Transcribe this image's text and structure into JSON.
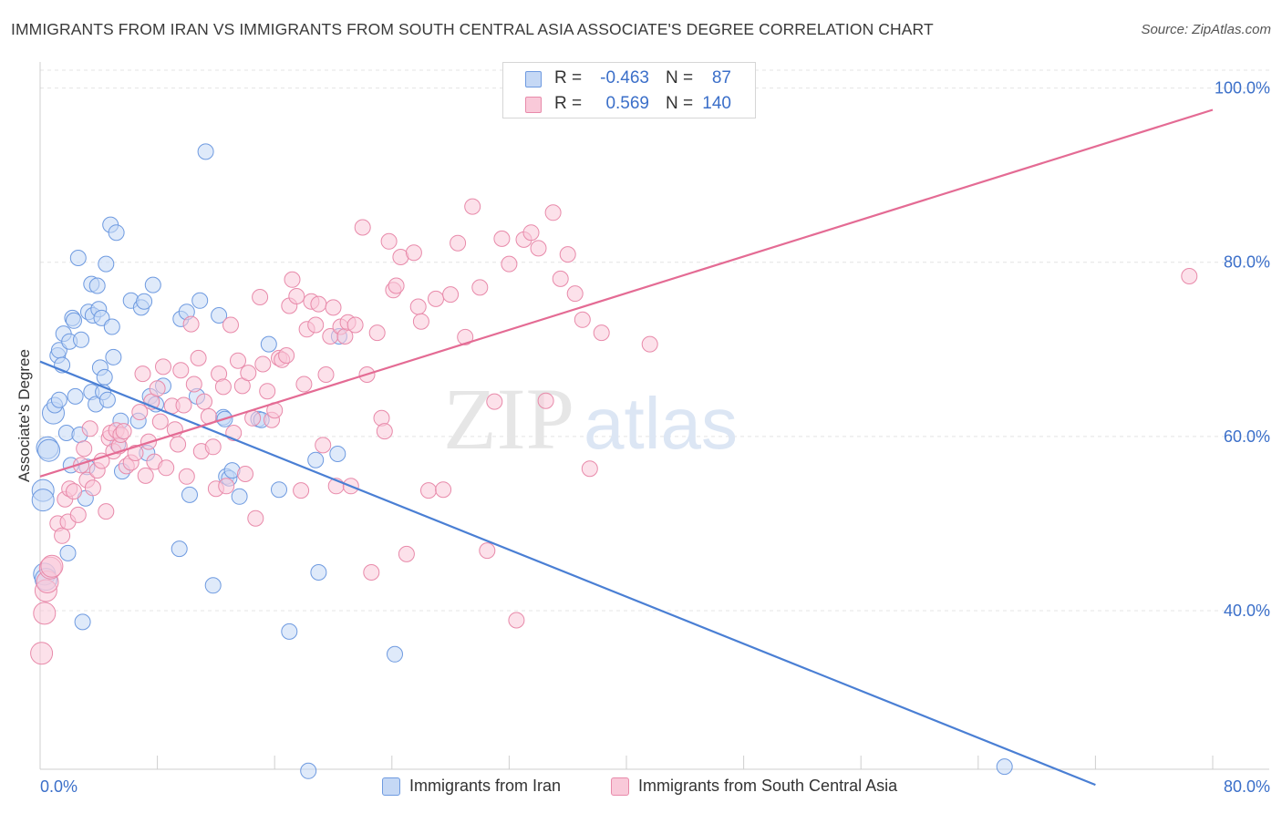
{
  "title": "IMMIGRANTS FROM IRAN VS IMMIGRANTS FROM SOUTH CENTRAL ASIA ASSOCIATE'S DEGREE CORRELATION CHART",
  "source": "Source: ZipAtlas.com",
  "watermark": {
    "zip": "ZIP",
    "atlas": "atlas"
  },
  "stats": {
    "r_label": "R =",
    "n_label": "N =",
    "rows": [
      {
        "r": "-0.463",
        "n": "87",
        "color": "#4a7fd4"
      },
      {
        "r": "0.569",
        "n": "140",
        "color": "#e46b94"
      }
    ]
  },
  "legend": [
    {
      "label": "Immigrants from Iran",
      "fill": "#c5d8f5",
      "stroke": "#6e9ae0"
    },
    {
      "label": "Immigrants from South Central Asia",
      "fill": "#f9c9d9",
      "stroke": "#e88aaa"
    }
  ],
  "chart_data": {
    "type": "scatter",
    "title": "IMMIGRANTS FROM IRAN VS IMMIGRANTS FROM SOUTH CENTRAL ASIA ASSOCIATE'S DEGREE CORRELATION CHART",
    "xlabel": "",
    "ylabel": "Associate's Degree",
    "xlim": [
      0,
      80
    ],
    "ylim": [
      20,
      102
    ],
    "x_tick_labels": [
      "0.0%",
      "80.0%"
    ],
    "y_ticks": [
      40,
      60,
      80,
      100
    ],
    "y_tick_labels": [
      "40.0%",
      "60.0%",
      "80.0%",
      "100.0%"
    ],
    "grid": true,
    "legend_position": "bottom",
    "series": [
      {
        "name": "Immigrants from Iran",
        "color": "#4a7fd4",
        "fill": "#c5d8f5",
        "trend": {
          "x": [
            0,
            72
          ],
          "y": [
            68.6,
            20
          ]
        },
        "points": [
          [
            0.2,
            53.8
          ],
          [
            0.2,
            52.7
          ],
          [
            0.3,
            44.2
          ],
          [
            0.4,
            43.6
          ],
          [
            0.5,
            58.7
          ],
          [
            0.6,
            58.4
          ],
          [
            0.9,
            62.7
          ],
          [
            1.0,
            63.6
          ],
          [
            1.2,
            69.3
          ],
          [
            1.3,
            64.2
          ],
          [
            1.3,
            69.9
          ],
          [
            1.5,
            68.2
          ],
          [
            1.6,
            71.8
          ],
          [
            1.8,
            60.4
          ],
          [
            1.9,
            46.6
          ],
          [
            2.0,
            70.9
          ],
          [
            2.1,
            56.7
          ],
          [
            2.2,
            73.6
          ],
          [
            2.3,
            73.3
          ],
          [
            2.4,
            64.6
          ],
          [
            2.6,
            80.5
          ],
          [
            2.7,
            60.2
          ],
          [
            2.8,
            71.1
          ],
          [
            2.9,
            38.7
          ],
          [
            3.1,
            52.9
          ],
          [
            3.2,
            56.5
          ],
          [
            3.3,
            74.3
          ],
          [
            3.5,
            77.5
          ],
          [
            3.5,
            65.1
          ],
          [
            3.6,
            73.9
          ],
          [
            3.8,
            63.7
          ],
          [
            3.9,
            77.3
          ],
          [
            4.0,
            74.6
          ],
          [
            4.1,
            67.9
          ],
          [
            4.2,
            73.6
          ],
          [
            4.3,
            65.1
          ],
          [
            4.4,
            66.8
          ],
          [
            4.5,
            79.8
          ],
          [
            4.6,
            64.2
          ],
          [
            4.8,
            84.3
          ],
          [
            4.9,
            72.6
          ],
          [
            5.0,
            69.1
          ],
          [
            5.2,
            83.4
          ],
          [
            5.3,
            59.1
          ],
          [
            5.5,
            61.8
          ],
          [
            5.6,
            56.0
          ],
          [
            6.2,
            75.6
          ],
          [
            6.7,
            61.8
          ],
          [
            6.9,
            74.8
          ],
          [
            7.1,
            75.5
          ],
          [
            7.3,
            58.1
          ],
          [
            7.5,
            64.6
          ],
          [
            7.7,
            77.4
          ],
          [
            7.9,
            63.7
          ],
          [
            8.4,
            65.8
          ],
          [
            9.5,
            47.1
          ],
          [
            9.6,
            73.5
          ],
          [
            10.0,
            74.3
          ],
          [
            10.2,
            53.3
          ],
          [
            10.7,
            64.6
          ],
          [
            10.9,
            75.6
          ],
          [
            11.3,
            92.7
          ],
          [
            11.8,
            42.9
          ],
          [
            12.2,
            73.9
          ],
          [
            12.5,
            62.2
          ],
          [
            12.6,
            62.0
          ],
          [
            12.7,
            55.4
          ],
          [
            12.9,
            55.2
          ],
          [
            13.1,
            56.1
          ],
          [
            13.6,
            53.1
          ],
          [
            14.9,
            62.0
          ],
          [
            15.1,
            61.9
          ],
          [
            15.6,
            70.6
          ],
          [
            16.3,
            53.9
          ],
          [
            17.0,
            37.6
          ],
          [
            18.3,
            21.6
          ],
          [
            18.8,
            57.3
          ],
          [
            19.0,
            44.4
          ],
          [
            20.3,
            58.0
          ],
          [
            20.4,
            71.5
          ],
          [
            24.2,
            35.0
          ],
          [
            65.8,
            22.1
          ]
        ]
      },
      {
        "name": "Immigrants from South Central Asia",
        "color": "#e46b94",
        "fill": "#f9c9d9",
        "trend": {
          "x": [
            0,
            80
          ],
          "y": [
            55.4,
            97.5
          ]
        },
        "points": [
          [
            0.1,
            35.1
          ],
          [
            0.3,
            39.7
          ],
          [
            0.4,
            42.3
          ],
          [
            0.5,
            43.3
          ],
          [
            0.7,
            44.9
          ],
          [
            0.8,
            45.1
          ],
          [
            1.2,
            50.0
          ],
          [
            1.5,
            48.6
          ],
          [
            1.7,
            52.8
          ],
          [
            1.9,
            50.2
          ],
          [
            2.0,
            54.0
          ],
          [
            2.3,
            53.7
          ],
          [
            2.6,
            51.0
          ],
          [
            2.8,
            56.7
          ],
          [
            3.0,
            58.6
          ],
          [
            3.2,
            55.0
          ],
          [
            3.4,
            60.9
          ],
          [
            3.6,
            54.1
          ],
          [
            3.9,
            56.1
          ],
          [
            4.2,
            57.2
          ],
          [
            4.5,
            51.4
          ],
          [
            4.7,
            59.8
          ],
          [
            4.8,
            60.4
          ],
          [
            5.0,
            58.3
          ],
          [
            5.2,
            60.7
          ],
          [
            5.4,
            58.9
          ],
          [
            5.5,
            60.2
          ],
          [
            5.7,
            60.6
          ],
          [
            5.9,
            56.6
          ],
          [
            6.2,
            57.0
          ],
          [
            6.5,
            58.1
          ],
          [
            6.8,
            62.8
          ],
          [
            7.0,
            67.2
          ],
          [
            7.2,
            55.5
          ],
          [
            7.4,
            59.4
          ],
          [
            7.6,
            64.0
          ],
          [
            7.8,
            57.1
          ],
          [
            8.0,
            65.5
          ],
          [
            8.2,
            61.7
          ],
          [
            8.4,
            68.0
          ],
          [
            8.6,
            56.4
          ],
          [
            9.0,
            63.5
          ],
          [
            9.2,
            60.8
          ],
          [
            9.4,
            59.1
          ],
          [
            9.6,
            67.6
          ],
          [
            9.8,
            63.6
          ],
          [
            10.0,
            55.4
          ],
          [
            10.3,
            72.9
          ],
          [
            10.5,
            66.0
          ],
          [
            10.8,
            69.0
          ],
          [
            11.0,
            58.3
          ],
          [
            11.2,
            64.0
          ],
          [
            11.5,
            62.3
          ],
          [
            11.8,
            58.8
          ],
          [
            12.0,
            54.0
          ],
          [
            12.2,
            67.2
          ],
          [
            12.5,
            65.7
          ],
          [
            12.7,
            54.3
          ],
          [
            13.0,
            72.8
          ],
          [
            13.2,
            60.4
          ],
          [
            13.5,
            68.7
          ],
          [
            13.8,
            65.8
          ],
          [
            14.0,
            55.7
          ],
          [
            14.2,
            67.3
          ],
          [
            14.5,
            62.1
          ],
          [
            14.7,
            50.6
          ],
          [
            15.0,
            76.0
          ],
          [
            15.2,
            68.3
          ],
          [
            15.5,
            65.2
          ],
          [
            15.8,
            61.9
          ],
          [
            16.0,
            63.0
          ],
          [
            16.3,
            69.0
          ],
          [
            16.5,
            68.8
          ],
          [
            16.8,
            69.3
          ],
          [
            17.0,
            75.0
          ],
          [
            17.2,
            78.0
          ],
          [
            17.5,
            76.1
          ],
          [
            17.8,
            53.8
          ],
          [
            18.0,
            66.0
          ],
          [
            18.2,
            72.3
          ],
          [
            18.5,
            75.5
          ],
          [
            18.8,
            72.8
          ],
          [
            19.0,
            75.2
          ],
          [
            19.3,
            59.0
          ],
          [
            19.5,
            67.1
          ],
          [
            19.8,
            71.5
          ],
          [
            20.0,
            74.8
          ],
          [
            20.2,
            54.3
          ],
          [
            20.5,
            72.6
          ],
          [
            20.8,
            71.5
          ],
          [
            21.0,
            73.1
          ],
          [
            21.2,
            54.3
          ],
          [
            21.5,
            72.8
          ],
          [
            22.0,
            84.0
          ],
          [
            22.3,
            67.1
          ],
          [
            22.6,
            44.4
          ],
          [
            23.0,
            71.9
          ],
          [
            23.3,
            62.1
          ],
          [
            23.5,
            60.6
          ],
          [
            23.8,
            82.4
          ],
          [
            24.1,
            76.8
          ],
          [
            24.3,
            77.3
          ],
          [
            24.6,
            80.6
          ],
          [
            25.0,
            46.5
          ],
          [
            25.5,
            81.1
          ],
          [
            25.8,
            74.9
          ],
          [
            26.0,
            73.2
          ],
          [
            26.5,
            53.8
          ],
          [
            27.0,
            75.8
          ],
          [
            27.5,
            53.9
          ],
          [
            28.0,
            76.3
          ],
          [
            28.5,
            82.2
          ],
          [
            29.0,
            71.4
          ],
          [
            29.5,
            86.4
          ],
          [
            30.0,
            77.1
          ],
          [
            30.5,
            46.9
          ],
          [
            31.0,
            64.0
          ],
          [
            31.5,
            82.7
          ],
          [
            32.0,
            79.8
          ],
          [
            32.5,
            38.9
          ],
          [
            33.0,
            82.6
          ],
          [
            33.5,
            83.4
          ],
          [
            34.0,
            81.6
          ],
          [
            34.5,
            64.1
          ],
          [
            35.0,
            85.7
          ],
          [
            35.5,
            78.1
          ],
          [
            36.0,
            80.9
          ],
          [
            36.5,
            76.4
          ],
          [
            37.0,
            73.4
          ],
          [
            37.5,
            56.3
          ],
          [
            38.3,
            71.9
          ],
          [
            41.6,
            70.6
          ],
          [
            78.4,
            78.4
          ]
        ]
      }
    ]
  }
}
